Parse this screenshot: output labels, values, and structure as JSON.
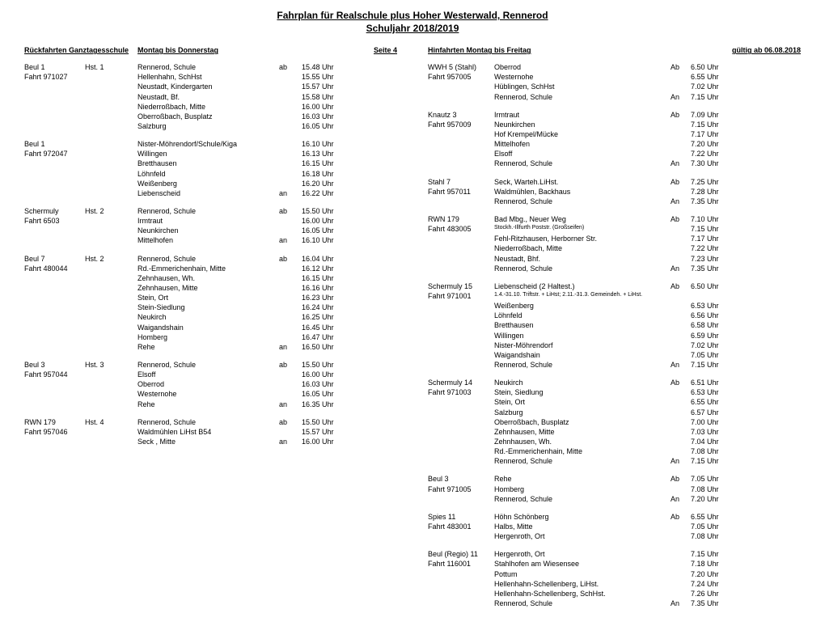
{
  "title_line1": "Fahrplan für Realschule plus Hoher Westerwald, Rennerod",
  "title_line2": "Schuljahr 2018/2019",
  "left": {
    "h1": "Rückfahrten Ganztagesschule",
    "h2": "Montag bis Donnerstag",
    "h3": "Seite 4",
    "blocks": [
      {
        "route": [
          "Beul 1",
          "Fahrt 971027"
        ],
        "hst": "Hst.  1",
        "rows": [
          {
            "stop": "Rennerod, Schule",
            "ab": "ab",
            "time": "15.48 Uhr"
          },
          {
            "stop": "Hellenhahn, SchHst",
            "ab": "",
            "time": "15.55 Uhr"
          },
          {
            "stop": "Neustadt, Kindergarten",
            "ab": "",
            "time": "15.57 Uhr"
          },
          {
            "stop": "Neustadt, Bf.",
            "ab": "",
            "time": "15.58 Uhr"
          },
          {
            "stop": "Niederroßbach, Mitte",
            "ab": "",
            "time": "16.00 Uhr"
          },
          {
            "stop": "Oberroßbach, Busplatz",
            "ab": "",
            "time": "16.03 Uhr"
          },
          {
            "stop": "Salzburg",
            "ab": "",
            "time": "16.05 Uhr"
          }
        ]
      },
      {
        "route": [
          "Beul 1",
          "Fahrt 972047"
        ],
        "hst": "",
        "rows": [
          {
            "stop": "Nister-Möhrendorf/Schule/Kiga",
            "ab": "",
            "time": "16.10 Uhr"
          },
          {
            "stop": "Willingen",
            "ab": "",
            "time": "16.13 Uhr"
          },
          {
            "stop": "Bretthausen",
            "ab": "",
            "time": "16.15 Uhr"
          },
          {
            "stop": "Löhnfeld",
            "ab": "",
            "time": "16.18 Uhr"
          },
          {
            "stop": "Weißenberg",
            "ab": "",
            "time": "16.20 Uhr"
          },
          {
            "stop": "Liebenscheid",
            "ab": "an",
            "time": "16.22 Uhr"
          }
        ]
      },
      {
        "route": [
          "Schermuly",
          "Fahrt 6503"
        ],
        "hst": "Hst.  2",
        "rows": [
          {
            "stop": "Rennerod, Schule",
            "ab": "ab",
            "time": "15.50 Uhr"
          },
          {
            "stop": "Irmtraut",
            "ab": "",
            "time": "16.00 Uhr"
          },
          {
            "stop": "Neunkirchen",
            "ab": "",
            "time": "16.05 Uhr"
          },
          {
            "stop": "Mittelhofen",
            "ab": "an",
            "time": "16.10 Uhr"
          }
        ]
      },
      {
        "route": [
          "Beul 7",
          "Fahrt 480044"
        ],
        "hst": "Hst.  2",
        "rows": [
          {
            "stop": "Rennerod, Schule",
            "ab": "ab",
            "time": "16.04 Uhr"
          },
          {
            "stop": "Rd.-Emmerichenhain, Mitte",
            "ab": "",
            "time": "16.12 Uhr"
          },
          {
            "stop": "Zehnhausen, Wh.",
            "ab": "",
            "time": "16.15 Uhr"
          },
          {
            "stop": "Zehnhausen, Mitte",
            "ab": "",
            "time": "16.16 Uhr"
          },
          {
            "stop": "Stein, Ort",
            "ab": "",
            "time": "16.23 Uhr"
          },
          {
            "stop": "Stein-Siedlung",
            "ab": "",
            "time": "16.24 Uhr"
          },
          {
            "stop": "Neukirch",
            "ab": "",
            "time": "16.25 Uhr"
          },
          {
            "stop": "Waigandshain",
            "ab": "",
            "time": "16.45 Uhr"
          },
          {
            "stop": "Homberg",
            "ab": "",
            "time": "16.47 Uhr"
          },
          {
            "stop": "Rehe",
            "ab": "an",
            "time": "16.50 Uhr"
          }
        ]
      },
      {
        "route": [
          "Beul 3",
          "Fahrt 957044"
        ],
        "hst": "Hst.  3",
        "rows": [
          {
            "stop": "Rennerod, Schule",
            "ab": "ab",
            "time": "15.50 Uhr"
          },
          {
            "stop": "Elsoff",
            "ab": "",
            "time": "16.00 Uhr"
          },
          {
            "stop": "Oberrod",
            "ab": "",
            "time": "16.03 Uhr"
          },
          {
            "stop": "Westernohe",
            "ab": "",
            "time": "16.05 Uhr"
          },
          {
            "stop": "Rehe",
            "ab": "an",
            "time": "16.35 Uhr"
          }
        ]
      },
      {
        "route": [
          "RWN 179",
          "Fahrt 957046"
        ],
        "hst": "Hst.  4",
        "rows": [
          {
            "stop": "Rennerod, Schule",
            "ab": "ab",
            "time": "15.50 Uhr"
          },
          {
            "stop": "Waldmühlen LiHst B54",
            "ab": "",
            "time": "15.57 Uhr"
          },
          {
            "stop": "Seck , Mitte",
            "ab": "an",
            "time": "16.00 Uhr"
          }
        ]
      }
    ]
  },
  "right": {
    "h1": "Hinfahrten Montag bis Freitag",
    "h2": "gültig ab 06.08.2018",
    "blocks": [
      {
        "route": [
          "WWH 5 (Stahl)",
          "Fahrt 957005"
        ],
        "rows": [
          {
            "stop": "Oberrod",
            "ab": "Ab",
            "time": "6.50 Uhr"
          },
          {
            "stop": "Westernohe",
            "ab": "",
            "time": "6.55 Uhr"
          },
          {
            "stop": "Hüblingen, SchHst",
            "ab": "",
            "time": "7.02 Uhr"
          },
          {
            "stop": "Rennerod, Schule",
            "ab": "An",
            "time": "7.15 Uhr"
          }
        ]
      },
      {
        "route": [
          "Knautz 3",
          "Fahrt 957009"
        ],
        "rows": [
          {
            "stop": "Irmtraut",
            "ab": "Ab",
            "time": "7.09 Uhr"
          },
          {
            "stop": "Neunkirchen",
            "ab": "",
            "time": "7.15 Uhr"
          },
          {
            "stop": "Hof Krempel/Mücke",
            "ab": "",
            "time": "7.17 Uhr"
          },
          {
            "stop": "Mittelhofen",
            "ab": "",
            "time": "7.20 Uhr"
          },
          {
            "stop": "Elsoff",
            "ab": "",
            "time": "7.22 Uhr"
          },
          {
            "stop": "Rennerod, Schule",
            "ab": "An",
            "time": "7.30 Uhr"
          }
        ]
      },
      {
        "route": [
          "Stahl 7",
          "Fahrt 957011"
        ],
        "rows": [
          {
            "stop": "Seck, Warteh.LiHst.",
            "ab": "Ab",
            "time": "7.25 Uhr"
          },
          {
            "stop": "Waldmühlen, Backhaus",
            "ab": "",
            "time": "7.28 Uhr"
          },
          {
            "stop": "Rennerod, Schule",
            "ab": "An",
            "time": "7.35 Uhr"
          }
        ]
      },
      {
        "route": [
          "RWN 179",
          "Fahrt 483005"
        ],
        "rows": [
          {
            "stop": "Bad Mbg., Neuer Weg",
            "ab": "Ab",
            "time": "7.10 Uhr"
          },
          {
            "stop": "Stockh.-Illfurth Poststr. (Großseifen)",
            "ab": "",
            "time": "7.15 Uhr",
            "mixedSmall": true,
            "main": "Stockh.-Illfurth Poststr. ",
            "small": "(Großseifen)"
          },
          {
            "stop": "Fehl-Ritzhausen, Herborner Str.",
            "ab": "",
            "time": "7.17 Uhr"
          },
          {
            "stop": "Niederroßbach, Mitte",
            "ab": "",
            "time": "7.22 Uhr"
          },
          {
            "stop": "Neustadt, Bhf.",
            "ab": "",
            "time": "7.23 Uhr"
          },
          {
            "stop": "Rennerod, Schule",
            "ab": "An",
            "time": "7.35 Uhr"
          }
        ]
      },
      {
        "route": [
          "Schermuly 15",
          "Fahrt 971001"
        ],
        "rows": [
          {
            "stop": "Liebenscheid (2 Haltest.)",
            "ab": "Ab",
            "time": "6.50 Uhr"
          },
          {
            "stop": "1.4.-31.10. Triftstr. + LiHst; 2.11.-31.3. Gemeindeh. + LiHst.",
            "ab": "",
            "time": "",
            "small": true
          },
          {
            "stop": "Weißenberg",
            "ab": "",
            "time": "6.53 Uhr"
          },
          {
            "stop": "Löhnfeld",
            "ab": "",
            "time": "6.56 Uhr"
          },
          {
            "stop": "Bretthausen",
            "ab": "",
            "time": "6.58 Uhr"
          },
          {
            "stop": "Willingen",
            "ab": "",
            "time": "6.59 Uhr"
          },
          {
            "stop": "Nister-Möhrendorf",
            "ab": "",
            "time": "7.02 Uhr"
          },
          {
            "stop": "Waigandshain",
            "ab": "",
            "time": "7.05 Uhr"
          },
          {
            "stop": "Rennerod, Schule",
            "ab": "An",
            "time": "7.15 Uhr"
          }
        ]
      },
      {
        "route": [
          "Schermuly 14",
          "Fahrt 971003"
        ],
        "rows": [
          {
            "stop": "Neukirch",
            "ab": "Ab",
            "time": "6.51 Uhr"
          },
          {
            "stop": "Stein, Siedlung",
            "ab": "",
            "time": "6.53 Uhr"
          },
          {
            "stop": "Stein, Ort",
            "ab": "",
            "time": "6.55 Uhr"
          },
          {
            "stop": "Salzburg",
            "ab": "",
            "time": "6.57 Uhr"
          },
          {
            "stop": "Oberroßbach, Busplatz",
            "ab": "",
            "time": "7.00 Uhr"
          },
          {
            "stop": "Zehnhausen, Mitte",
            "ab": "",
            "time": "7.03 Uhr"
          },
          {
            "stop": "Zehnhausen, Wh.",
            "ab": "",
            "time": "7.04 Uhr"
          },
          {
            "stop": "Rd.-Emmerichenhain, Mitte",
            "ab": "",
            "time": "7.08 Uhr"
          },
          {
            "stop": "Rennerod, Schule",
            "ab": "An",
            "time": "7.15 Uhr"
          }
        ]
      },
      {
        "route": [
          "Beul 3",
          "Fahrt 971005"
        ],
        "rows": [
          {
            "stop": "Rehe",
            "ab": "Ab",
            "time": "7.05 Uhr"
          },
          {
            "stop": "Homberg",
            "ab": "",
            "time": "7.08 Uhr"
          },
          {
            "stop": "Rennerod, Schule",
            "ab": "An",
            "time": "7.20 Uhr"
          }
        ]
      },
      {
        "route": [
          "Spies 11",
          "Fahrt 483001"
        ],
        "rows": [
          {
            "stop": "Höhn Schönberg",
            "ab": "Ab",
            "time": "6.55 Uhr"
          },
          {
            "stop": "Halbs, Mitte",
            "ab": "",
            "time": "7.05 Uhr"
          },
          {
            "stop": "Hergenroth, Ort",
            "ab": "",
            "time": "7.08 Uhr"
          }
        ]
      },
      {
        "route": [
          "Beul (Regio) 11",
          "Fahrt 116001"
        ],
        "rows": [
          {
            "stop": "Hergenroth, Ort",
            "ab": "",
            "time": "7.15 Uhr"
          },
          {
            "stop": "Stahlhofen am Wiesensee",
            "ab": "",
            "time": "7.18 Uhr"
          },
          {
            "stop": "Pottum",
            "ab": "",
            "time": "7.20 Uhr"
          },
          {
            "stop": "Hellenhahn-Schellenberg, LiHst.",
            "ab": "",
            "time": "7.24 Uhr"
          },
          {
            "stop": "Hellenhahn-Schellenberg, SchHst.",
            "ab": "",
            "time": "7.26 Uhr"
          },
          {
            "stop": "Rennerod, Schule",
            "ab": "An",
            "time": "7.35 Uhr"
          }
        ]
      }
    ]
  }
}
